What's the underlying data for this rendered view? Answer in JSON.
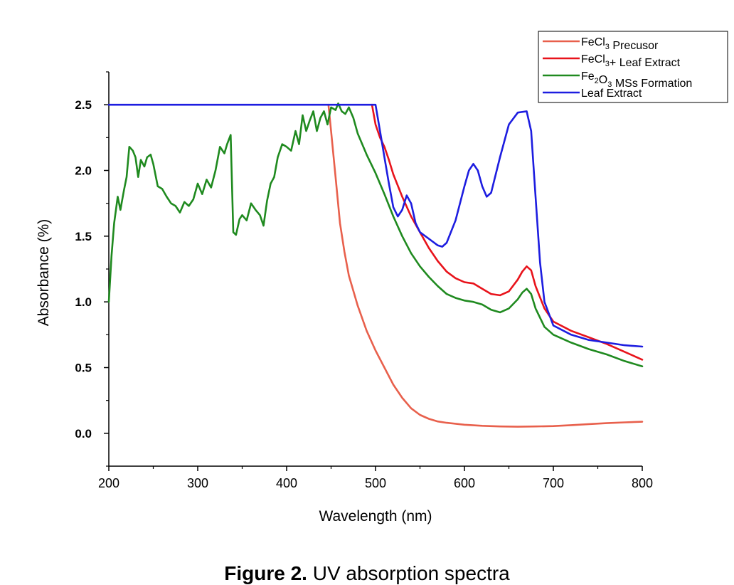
{
  "chart_data": {
    "type": "line",
    "xlabel": "Wavelength (nm)",
    "ylabel": "Absorbance (%)",
    "xlim": [
      200,
      800
    ],
    "ylim": [
      -0.25,
      2.75
    ],
    "x_ticks": [
      200,
      300,
      400,
      500,
      600,
      700,
      800
    ],
    "y_ticks": [
      "0.0",
      "0.5",
      "1.0",
      "1.5",
      "2.0",
      "2.5"
    ],
    "grid": false,
    "legend_position": "top-right",
    "legend_box": true,
    "series": [
      {
        "name": "FeCl3 Precusor",
        "legend_parts": [
          {
            "t": "FeCl"
          },
          {
            "t": "3",
            "sub": true
          },
          {
            "t": " Precusor"
          }
        ],
        "color": "#e8604c",
        "points": [
          [
            447,
            2.5
          ],
          [
            450,
            2.3
          ],
          [
            455,
            1.95
          ],
          [
            460,
            1.6
          ],
          [
            465,
            1.38
          ],
          [
            470,
            1.2
          ],
          [
            480,
            0.97
          ],
          [
            490,
            0.78
          ],
          [
            500,
            0.63
          ],
          [
            510,
            0.5
          ],
          [
            520,
            0.37
          ],
          [
            530,
            0.27
          ],
          [
            540,
            0.19
          ],
          [
            550,
            0.14
          ],
          [
            560,
            0.11
          ],
          [
            570,
            0.09
          ],
          [
            580,
            0.08
          ],
          [
            600,
            0.065
          ],
          [
            620,
            0.057
          ],
          [
            640,
            0.052
          ],
          [
            660,
            0.05
          ],
          [
            680,
            0.052
          ],
          [
            700,
            0.055
          ],
          [
            720,
            0.062
          ],
          [
            740,
            0.07
          ],
          [
            760,
            0.077
          ],
          [
            780,
            0.083
          ],
          [
            800,
            0.088
          ]
        ]
      },
      {
        "name": "FeCl3+ Leaf Extract",
        "legend_parts": [
          {
            "t": "FeCl"
          },
          {
            "t": "3",
            "sub": true
          },
          {
            "t": "+ Leaf Extract"
          }
        ],
        "color": "#e8131b",
        "points": [
          [
            496,
            2.5
          ],
          [
            500,
            2.35
          ],
          [
            505,
            2.25
          ],
          [
            510,
            2.18
          ],
          [
            515,
            2.08
          ],
          [
            520,
            1.97
          ],
          [
            530,
            1.8
          ],
          [
            540,
            1.65
          ],
          [
            550,
            1.53
          ],
          [
            560,
            1.41
          ],
          [
            570,
            1.31
          ],
          [
            580,
            1.23
          ],
          [
            590,
            1.18
          ],
          [
            600,
            1.15
          ],
          [
            610,
            1.14
          ],
          [
            620,
            1.1
          ],
          [
            630,
            1.06
          ],
          [
            640,
            1.05
          ],
          [
            650,
            1.08
          ],
          [
            660,
            1.17
          ],
          [
            665,
            1.23
          ],
          [
            670,
            1.27
          ],
          [
            675,
            1.24
          ],
          [
            680,
            1.12
          ],
          [
            690,
            0.95
          ],
          [
            700,
            0.85
          ],
          [
            720,
            0.78
          ],
          [
            740,
            0.73
          ],
          [
            760,
            0.68
          ],
          [
            780,
            0.62
          ],
          [
            800,
            0.56
          ]
        ]
      },
      {
        "name": "Fe2O3 MSs Formation",
        "legend_parts": [
          {
            "t": "Fe"
          },
          {
            "t": "2",
            "sub": true
          },
          {
            "t": "O"
          },
          {
            "t": "3",
            "sub": true
          },
          {
            "t": " MSs Formation"
          }
        ],
        "color": "#1f8a1f",
        "points": [
          [
            200,
            1.0
          ],
          [
            203,
            1.35
          ],
          [
            206,
            1.6
          ],
          [
            210,
            1.8
          ],
          [
            213,
            1.7
          ],
          [
            217,
            1.85
          ],
          [
            220,
            1.95
          ],
          [
            223,
            2.18
          ],
          [
            227,
            2.15
          ],
          [
            230,
            2.1
          ],
          [
            233,
            1.95
          ],
          [
            236,
            2.08
          ],
          [
            240,
            2.03
          ],
          [
            243,
            2.1
          ],
          [
            247,
            2.12
          ],
          [
            250,
            2.05
          ],
          [
            255,
            1.88
          ],
          [
            260,
            1.86
          ],
          [
            265,
            1.8
          ],
          [
            270,
            1.75
          ],
          [
            275,
            1.73
          ],
          [
            280,
            1.68
          ],
          [
            285,
            1.76
          ],
          [
            290,
            1.73
          ],
          [
            295,
            1.78
          ],
          [
            300,
            1.9
          ],
          [
            305,
            1.82
          ],
          [
            310,
            1.93
          ],
          [
            315,
            1.87
          ],
          [
            320,
            2.0
          ],
          [
            325,
            2.18
          ],
          [
            330,
            2.13
          ],
          [
            333,
            2.2
          ],
          [
            337,
            2.27
          ],
          [
            340,
            1.53
          ],
          [
            343,
            1.51
          ],
          [
            347,
            1.63
          ],
          [
            350,
            1.66
          ],
          [
            355,
            1.62
          ],
          [
            360,
            1.75
          ],
          [
            365,
            1.7
          ],
          [
            370,
            1.66
          ],
          [
            374,
            1.58
          ],
          [
            378,
            1.77
          ],
          [
            382,
            1.9
          ],
          [
            386,
            1.95
          ],
          [
            390,
            2.1
          ],
          [
            395,
            2.2
          ],
          [
            400,
            2.18
          ],
          [
            405,
            2.15
          ],
          [
            410,
            2.3
          ],
          [
            414,
            2.2
          ],
          [
            418,
            2.42
          ],
          [
            422,
            2.3
          ],
          [
            426,
            2.38
          ],
          [
            430,
            2.45
          ],
          [
            434,
            2.3
          ],
          [
            438,
            2.4
          ],
          [
            442,
            2.45
          ],
          [
            446,
            2.35
          ],
          [
            450,
            2.48
          ],
          [
            455,
            2.46
          ],
          [
            458,
            2.51
          ],
          [
            462,
            2.45
          ],
          [
            466,
            2.43
          ],
          [
            470,
            2.48
          ],
          [
            475,
            2.4
          ],
          [
            480,
            2.28
          ],
          [
            490,
            2.12
          ],
          [
            500,
            1.98
          ],
          [
            510,
            1.82
          ],
          [
            520,
            1.65
          ],
          [
            530,
            1.5
          ],
          [
            540,
            1.37
          ],
          [
            550,
            1.27
          ],
          [
            560,
            1.19
          ],
          [
            570,
            1.12
          ],
          [
            580,
            1.06
          ],
          [
            590,
            1.03
          ],
          [
            600,
            1.01
          ],
          [
            610,
            1.0
          ],
          [
            620,
            0.98
          ],
          [
            630,
            0.94
          ],
          [
            640,
            0.92
          ],
          [
            650,
            0.95
          ],
          [
            660,
            1.02
          ],
          [
            665,
            1.07
          ],
          [
            670,
            1.1
          ],
          [
            675,
            1.06
          ],
          [
            680,
            0.95
          ],
          [
            690,
            0.81
          ],
          [
            700,
            0.75
          ],
          [
            720,
            0.69
          ],
          [
            740,
            0.64
          ],
          [
            760,
            0.6
          ],
          [
            780,
            0.55
          ],
          [
            800,
            0.51
          ]
        ]
      },
      {
        "name": "Leaf Extract",
        "legend_parts": [
          {
            "t": "Leaf Extract"
          }
        ],
        "color": "#1d1de0",
        "points": [
          [
            200,
            2.5
          ],
          [
            500,
            2.5
          ],
          [
            505,
            2.3
          ],
          [
            510,
            2.1
          ],
          [
            515,
            1.9
          ],
          [
            520,
            1.72
          ],
          [
            525,
            1.65
          ],
          [
            530,
            1.7
          ],
          [
            535,
            1.81
          ],
          [
            540,
            1.75
          ],
          [
            545,
            1.6
          ],
          [
            550,
            1.53
          ],
          [
            560,
            1.48
          ],
          [
            570,
            1.43
          ],
          [
            575,
            1.42
          ],
          [
            580,
            1.45
          ],
          [
            590,
            1.62
          ],
          [
            600,
            1.88
          ],
          [
            605,
            2.0
          ],
          [
            610,
            2.05
          ],
          [
            615,
            2.0
          ],
          [
            620,
            1.88
          ],
          [
            625,
            1.8
          ],
          [
            630,
            1.83
          ],
          [
            640,
            2.1
          ],
          [
            650,
            2.35
          ],
          [
            660,
            2.44
          ],
          [
            670,
            2.45
          ],
          [
            675,
            2.3
          ],
          [
            680,
            1.8
          ],
          [
            685,
            1.3
          ],
          [
            690,
            1.0
          ],
          [
            700,
            0.82
          ],
          [
            720,
            0.75
          ],
          [
            740,
            0.71
          ],
          [
            760,
            0.69
          ],
          [
            780,
            0.67
          ],
          [
            800,
            0.66
          ]
        ]
      }
    ]
  },
  "caption": {
    "label": "Figure 2.",
    "text": " UV absorption spectra"
  }
}
